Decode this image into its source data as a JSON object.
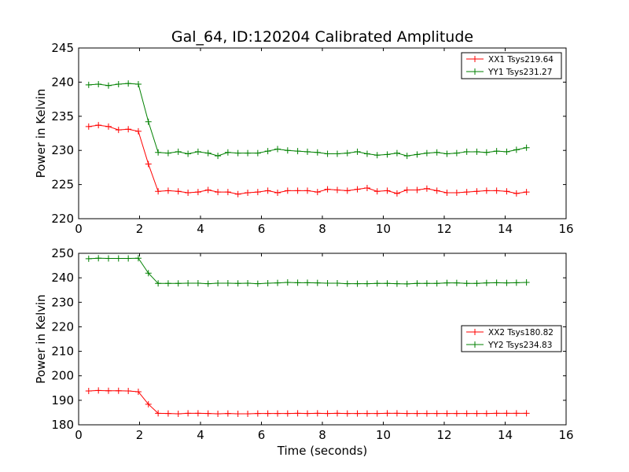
{
  "chart_data": [
    {
      "type": "line",
      "title": "Gal_64, ID:120204 Calibrated Amplitude",
      "xlabel": "",
      "ylabel": "Power in Kelvin",
      "xlim": [
        0,
        16
      ],
      "ylim": [
        220,
        245
      ],
      "xticks": [
        0,
        2,
        4,
        6,
        8,
        10,
        12,
        14,
        16
      ],
      "yticks": [
        220,
        225,
        230,
        235,
        240,
        245
      ],
      "legend_position": "top-right",
      "x": [
        0.33,
        0.65,
        0.98,
        1.31,
        1.63,
        1.96,
        2.29,
        2.61,
        2.94,
        3.27,
        3.59,
        3.92,
        4.25,
        4.57,
        4.9,
        5.23,
        5.55,
        5.88,
        6.21,
        6.53,
        6.86,
        7.19,
        7.51,
        7.84,
        8.17,
        8.49,
        8.82,
        9.15,
        9.47,
        9.8,
        10.13,
        10.45,
        10.78,
        11.11,
        11.43,
        11.76,
        12.09,
        12.41,
        12.74,
        13.07,
        13.39,
        13.72,
        14.05,
        14.37,
        14.7
      ],
      "series": [
        {
          "name": "XX1 Tsys219.64",
          "color": "#ff0000",
          "values": [
            233.5,
            233.7,
            233.5,
            233.0,
            233.1,
            232.8,
            228.0,
            224.0,
            224.1,
            224.0,
            223.8,
            223.9,
            224.2,
            223.9,
            223.9,
            223.6,
            223.8,
            223.9,
            224.1,
            223.8,
            224.1,
            224.1,
            224.1,
            223.9,
            224.3,
            224.2,
            224.1,
            224.3,
            224.5,
            224.0,
            224.1,
            223.7,
            224.2,
            224.2,
            224.4,
            224.1,
            223.8,
            223.8,
            223.9,
            224.0,
            224.1,
            224.1,
            224.0,
            223.7,
            223.9
          ]
        },
        {
          "name": "YY1 Tsys231.27",
          "color": "#008000",
          "values": [
            239.6,
            239.7,
            239.5,
            239.7,
            239.8,
            239.7,
            234.2,
            229.7,
            229.6,
            229.8,
            229.5,
            229.8,
            229.6,
            229.2,
            229.7,
            229.6,
            229.6,
            229.6,
            229.9,
            230.2,
            230.0,
            229.9,
            229.8,
            229.7,
            229.5,
            229.5,
            229.6,
            229.8,
            229.5,
            229.3,
            229.4,
            229.6,
            229.2,
            229.4,
            229.6,
            229.7,
            229.5,
            229.6,
            229.8,
            229.8,
            229.7,
            229.9,
            229.8,
            230.1,
            230.4
          ]
        }
      ]
    },
    {
      "type": "line",
      "title": "",
      "xlabel": "Time (seconds)",
      "ylabel": "Power in Kelvin",
      "xlim": [
        0,
        16
      ],
      "ylim": [
        180,
        250
      ],
      "xticks": [
        0,
        2,
        4,
        6,
        8,
        10,
        12,
        14,
        16
      ],
      "yticks": [
        180,
        190,
        200,
        210,
        220,
        230,
        240,
        250
      ],
      "legend_position": "center-right",
      "x": [
        0.33,
        0.65,
        0.98,
        1.31,
        1.63,
        1.96,
        2.29,
        2.61,
        2.94,
        3.27,
        3.59,
        3.92,
        4.25,
        4.57,
        4.9,
        5.23,
        5.55,
        5.88,
        6.21,
        6.53,
        6.86,
        7.19,
        7.51,
        7.84,
        8.17,
        8.49,
        8.82,
        9.15,
        9.47,
        9.8,
        10.13,
        10.45,
        10.78,
        11.11,
        11.43,
        11.76,
        12.09,
        12.41,
        12.74,
        13.07,
        13.39,
        13.72,
        14.05,
        14.37,
        14.7
      ],
      "series": [
        {
          "name": "XX2 Tsys180.82",
          "color": "#ff0000",
          "values": [
            193.8,
            194.0,
            193.9,
            193.9,
            193.8,
            193.5,
            188.4,
            184.7,
            184.6,
            184.5,
            184.7,
            184.7,
            184.6,
            184.5,
            184.6,
            184.5,
            184.5,
            184.6,
            184.6,
            184.6,
            184.6,
            184.7,
            184.6,
            184.7,
            184.6,
            184.7,
            184.6,
            184.6,
            184.6,
            184.6,
            184.7,
            184.7,
            184.6,
            184.6,
            184.6,
            184.6,
            184.6,
            184.6,
            184.6,
            184.6,
            184.6,
            184.7,
            184.7,
            184.7,
            184.7
          ]
        },
        {
          "name": "YY2 Tsys234.83",
          "color": "#008000",
          "values": [
            247.8,
            248.0,
            247.9,
            247.9,
            247.9,
            248.0,
            241.9,
            237.7,
            237.7,
            237.7,
            237.8,
            237.8,
            237.6,
            237.8,
            237.8,
            237.7,
            237.8,
            237.6,
            237.8,
            237.9,
            238.1,
            238.0,
            238.0,
            237.9,
            237.8,
            237.8,
            237.6,
            237.6,
            237.6,
            237.7,
            237.7,
            237.6,
            237.5,
            237.7,
            237.7,
            237.7,
            237.9,
            237.9,
            237.7,
            237.7,
            237.9,
            238.0,
            237.9,
            238.0,
            238.1
          ]
        }
      ]
    }
  ]
}
